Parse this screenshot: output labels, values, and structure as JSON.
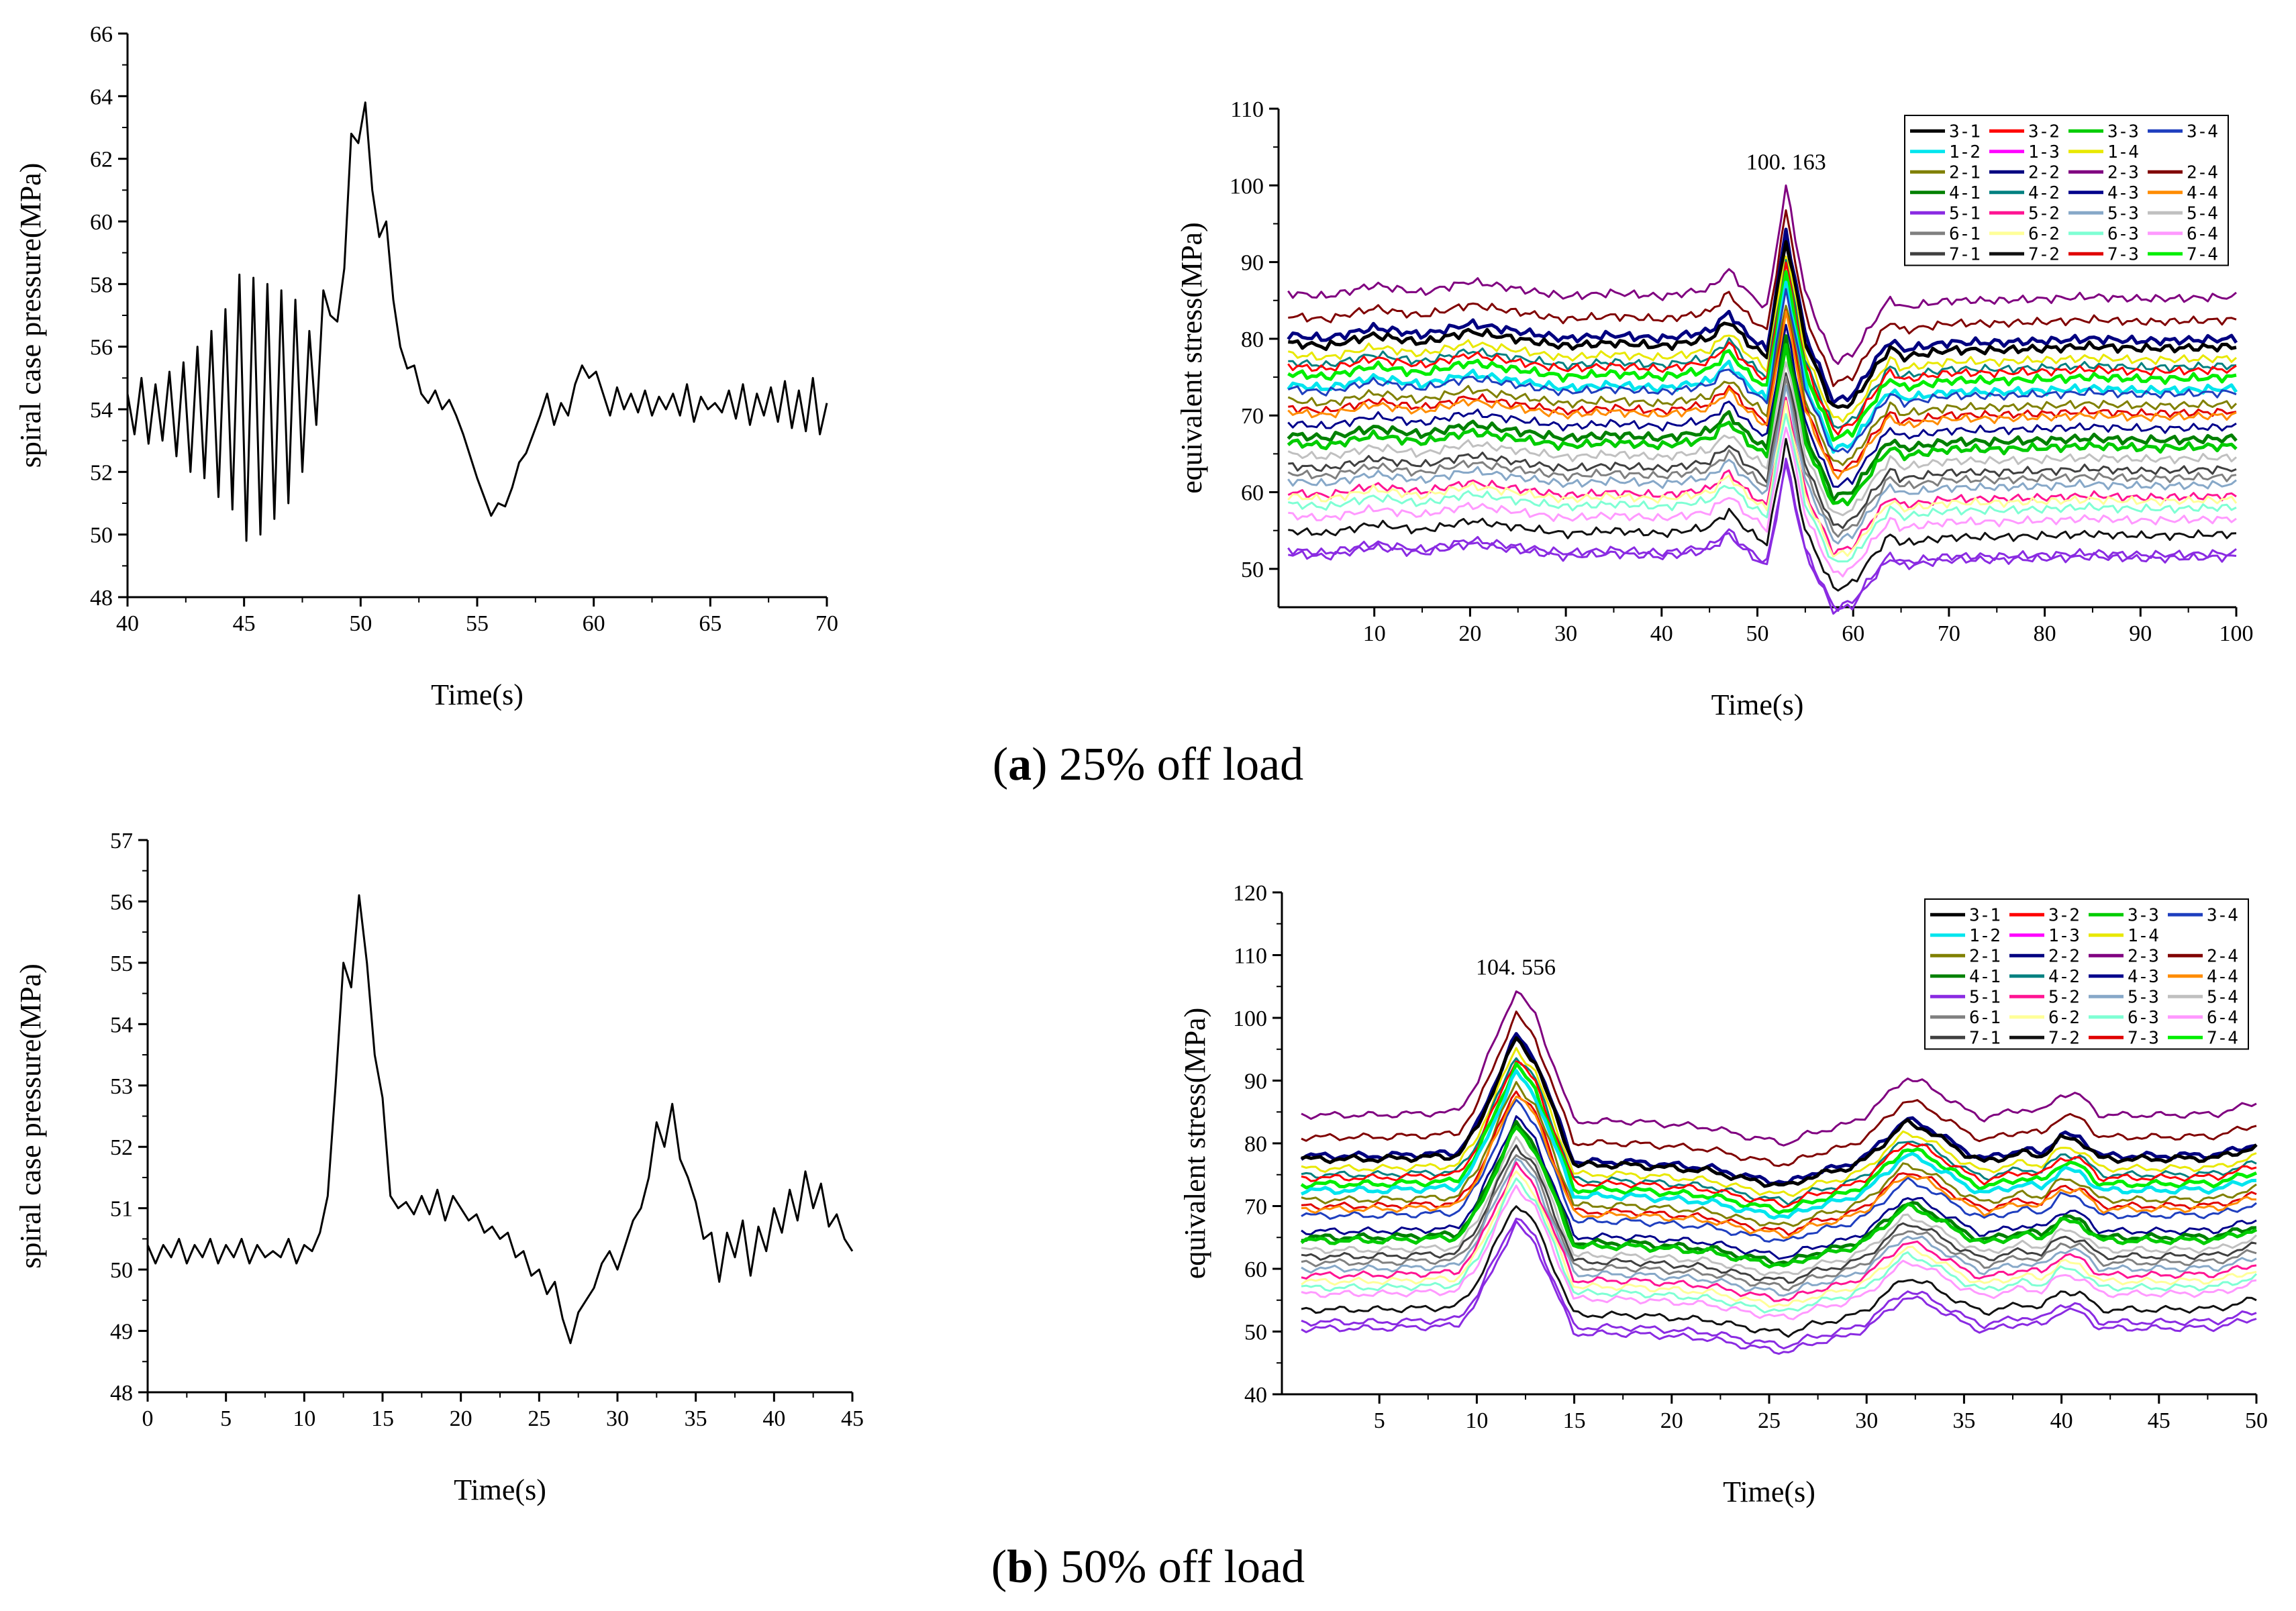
{
  "captions": {
    "a": {
      "letter": "a",
      "text": "25% off load"
    },
    "b": {
      "letter": "b",
      "text": "50% off load"
    }
  },
  "colors": {
    "3-1": "#000000",
    "3-2": "#ff0000",
    "3-3": "#00cc00",
    "3-4": "#1f3fbf",
    "1-2": "#00e5ee",
    "1-3": "#ff00ff",
    "1-4": "#e8e800",
    "2-1": "#808000",
    "2-2": "#000080",
    "2-3": "#800080",
    "2-4": "#800000",
    "4-1": "#008000",
    "4-2": "#008080",
    "4-3": "#00008b",
    "4-4": "#ff8c00",
    "5-1": "#8a2be2",
    "5-2": "#ff1493",
    "5-3": "#87a8c8",
    "5-4": "#c0c0c0",
    "6-1": "#808080",
    "6-2": "#ffff99",
    "6-3": "#7fffd4",
    "6-4": "#ff99ff",
    "7-1": "#404040",
    "7-2": "#111111",
    "7-3": "#e00000",
    "7-4": "#00ee00"
  },
  "chart_data": [
    {
      "id": "a-pressure",
      "type": "line",
      "xlabel": "Time(s)",
      "ylabel": "spiral case pressure(MPa)",
      "xlim": [
        40,
        70
      ],
      "ylim": [
        48,
        66
      ],
      "xticks": [
        40,
        45,
        50,
        55,
        60,
        65,
        70
      ],
      "yticks": [
        48,
        50,
        52,
        54,
        56,
        58,
        60,
        62,
        64,
        66
      ],
      "grid": false,
      "series": [
        {
          "x": [
            40,
            40.3,
            40.6,
            40.9,
            41.2,
            41.5,
            41.8,
            42.1,
            42.4,
            42.7,
            43.0,
            43.3,
            43.6,
            43.9,
            44.2,
            44.5,
            44.8,
            45.1,
            45.4,
            45.7,
            46.0,
            46.3,
            46.6,
            46.9,
            47.2,
            47.5,
            47.8,
            48.1,
            48.4,
            48.7,
            49.0,
            49.3,
            49.6,
            49.9,
            50.2,
            50.5,
            50.8,
            51.1,
            51.4,
            51.7,
            52.0,
            52.3,
            52.6,
            52.9,
            53.2,
            53.5,
            53.8,
            54.1,
            54.4,
            54.7,
            55.0,
            55.3,
            55.6,
            55.9,
            56.2,
            56.5,
            56.8,
            57.1,
            57.4,
            57.7,
            58.0,
            58.3,
            58.6,
            58.9,
            59.2,
            59.5,
            59.8,
            60.1,
            60.4,
            60.7,
            61.0,
            61.3,
            61.6,
            61.9,
            62.2,
            62.5,
            62.8,
            63.1,
            63.4,
            63.7,
            64.0,
            64.3,
            64.6,
            64.9,
            65.2,
            65.5,
            65.8,
            66.1,
            66.4,
            66.7,
            67.0,
            67.3,
            67.6,
            67.9,
            68.2,
            68.5,
            68.8,
            69.1,
            69.4,
            69.7,
            70.0
          ],
          "y": [
            54.5,
            53.2,
            55.0,
            52.9,
            54.8,
            53.0,
            55.2,
            52.5,
            55.5,
            52.0,
            56.0,
            51.8,
            56.5,
            51.2,
            57.2,
            50.8,
            58.3,
            49.8,
            58.2,
            50.0,
            58.0,
            50.5,
            57.8,
            51.0,
            57.5,
            52.0,
            56.5,
            53.5,
            57.8,
            57.0,
            56.8,
            58.5,
            62.8,
            62.5,
            63.8,
            61.0,
            59.5,
            60.0,
            57.5,
            56.0,
            55.3,
            55.4,
            54.5,
            54.2,
            54.6,
            54.0,
            54.3,
            53.8,
            53.2,
            52.5,
            51.8,
            51.2,
            50.6,
            51.0,
            50.9,
            51.5,
            52.3,
            52.6,
            53.2,
            53.8,
            54.5,
            53.5,
            54.2,
            53.8,
            54.8,
            55.4,
            55.0,
            55.2,
            54.5,
            53.8,
            54.7,
            54.0,
            54.5,
            53.9,
            54.6,
            53.8,
            54.4,
            54.0,
            54.5,
            53.8,
            54.8,
            53.6,
            54.4,
            54.0,
            54.2,
            53.9,
            54.6,
            53.7,
            54.8,
            53.5,
            54.5,
            53.8,
            54.7,
            53.6,
            54.9,
            53.4,
            54.6,
            53.3,
            55.0,
            53.2,
            54.2
          ]
        }
      ]
    },
    {
      "id": "a-stress",
      "type": "line",
      "xlabel": "Time(s)",
      "ylabel": "equivalent stress(MPa)",
      "xlim": [
        0,
        100
      ],
      "ylim": [
        45,
        110
      ],
      "xticks": [
        10,
        20,
        30,
        40,
        50,
        60,
        70,
        80,
        90,
        100
      ],
      "yticks": [
        50,
        60,
        70,
        80,
        90,
        100,
        110
      ],
      "grid": false,
      "legend": "top-right",
      "legend_cols": [
        "3-1",
        "3-2",
        "3-3",
        "3-4",
        "1-2",
        "1-3",
        "1-4",
        "2-1",
        "2-2",
        "2-3",
        "2-4",
        "4-1",
        "4-2",
        "4-3",
        "4-4",
        "5-1",
        "5-2",
        "5-3",
        "5-4",
        "6-1",
        "6-2",
        "6-3",
        "6-4",
        "7-1",
        "7-2",
        "7-3",
        "7-4"
      ],
      "peak_label": "100. 163",
      "peak_x": 53,
      "peak_y": 100.163,
      "series_bases": {
        "2-3": 86,
        "2-4": 83,
        "2-2": 80.5,
        "3-1": 79.5,
        "1-4": 78,
        "4-2": 77,
        "3-2": 76.5,
        "7-4": 75.5,
        "1-2": 74,
        "3-4": 73.5,
        "2-1": 72,
        "7-3": 71,
        "4-4": 70.5,
        "4-3": 69,
        "4-1": 67.5,
        "3-3": 66.5,
        "5-4": 65,
        "7-1": 63.5,
        "6-1": 62.5,
        "5-3": 61.5,
        "5-2": 60,
        "6-2": 59.5,
        "6-3": 58.5,
        "6-4": 57,
        "7-2": 55,
        "5-1": 52.5,
        "4-x": 52
      },
      "profile_x": [
        1,
        5,
        10,
        15,
        20,
        25,
        30,
        35,
        40,
        45,
        47,
        49,
        51,
        53,
        55,
        57,
        58,
        60,
        62,
        64,
        65,
        70,
        75,
        80,
        85,
        90,
        95,
        100
      ],
      "profile_d": [
        0,
        -0.5,
        1,
        0,
        1.5,
        0.5,
        -0.5,
        0,
        -0.5,
        0.5,
        3,
        0,
        -2,
        14,
        0,
        -6,
        -9,
        -8,
        -4,
        -0.5,
        -2,
        -1,
        -1,
        -0.8,
        -0.5,
        -0.8,
        -0.7,
        -0.5
      ],
      "peak_amp": 14
    },
    {
      "id": "b-pressure",
      "type": "line",
      "xlabel": "Time(s)",
      "ylabel": "spiral case pressure(MPa)",
      "xlim": [
        0,
        45
      ],
      "ylim": [
        48,
        57
      ],
      "xticks": [
        0,
        5,
        10,
        15,
        20,
        25,
        30,
        35,
        40,
        45
      ],
      "yticks": [
        48,
        49,
        50,
        51,
        52,
        53,
        54,
        55,
        56,
        57
      ],
      "grid": false,
      "series": [
        {
          "x": [
            0,
            0.5,
            1,
            1.5,
            2,
            2.5,
            3,
            3.5,
            4,
            4.5,
            5,
            5.5,
            6,
            6.5,
            7,
            7.5,
            8,
            8.5,
            9,
            9.5,
            10,
            10.5,
            11,
            11.5,
            12,
            12.5,
            13,
            13.5,
            14,
            14.5,
            15,
            15.5,
            16,
            16.5,
            17,
            17.5,
            18,
            18.5,
            19,
            19.5,
            20,
            20.5,
            21,
            21.5,
            22,
            22.5,
            23,
            23.5,
            24,
            24.5,
            25,
            25.5,
            26,
            26.5,
            27,
            27.5,
            28,
            28.5,
            29,
            29.5,
            30,
            30.5,
            31,
            31.5,
            32,
            32.5,
            33,
            33.5,
            34,
            34.5,
            35,
            35.5,
            36,
            36.5,
            37,
            37.5,
            38,
            38.5,
            39,
            39.5,
            40,
            40.5,
            41,
            41.5,
            42,
            42.5,
            43,
            43.5,
            44,
            44.5,
            45
          ],
          "y": [
            50.4,
            50.1,
            50.4,
            50.2,
            50.5,
            50.1,
            50.4,
            50.2,
            50.5,
            50.1,
            50.4,
            50.2,
            50.5,
            50.1,
            50.4,
            50.2,
            50.3,
            50.2,
            50.5,
            50.1,
            50.4,
            50.3,
            50.6,
            51.2,
            53.0,
            55.0,
            54.6,
            56.1,
            55.0,
            53.5,
            52.8,
            51.2,
            51.0,
            51.1,
            50.9,
            51.2,
            50.9,
            51.3,
            50.8,
            51.2,
            51.0,
            50.8,
            50.9,
            50.6,
            50.7,
            50.5,
            50.6,
            50.2,
            50.3,
            49.9,
            50.0,
            49.6,
            49.8,
            49.2,
            48.8,
            49.3,
            49.5,
            49.7,
            50.1,
            50.3,
            50.0,
            50.4,
            50.8,
            51.0,
            51.5,
            52.4,
            52.0,
            52.7,
            51.8,
            51.5,
            51.1,
            50.5,
            50.6,
            49.8,
            50.6,
            50.2,
            50.8,
            49.9,
            50.7,
            50.3,
            51.0,
            50.6,
            51.3,
            50.8,
            51.6,
            51.0,
            51.4,
            50.7,
            50.9,
            50.5,
            50.3
          ]
        }
      ]
    },
    {
      "id": "b-stress",
      "type": "line",
      "xlabel": "Time(s)",
      "ylabel": "equivalent stress(MPa)",
      "xlim": [
        0,
        50
      ],
      "ylim": [
        40,
        120
      ],
      "xticks": [
        5,
        10,
        15,
        20,
        25,
        30,
        35,
        40,
        45,
        50
      ],
      "yticks": [
        40,
        50,
        60,
        70,
        80,
        90,
        100,
        110,
        120
      ],
      "grid": false,
      "legend": "top-right",
      "legend_cols": [
        "3-1",
        "3-2",
        "3-3",
        "3-4",
        "1-2",
        "1-3",
        "1-4",
        "2-1",
        "2-2",
        "2-3",
        "2-4",
        "4-1",
        "4-2",
        "4-3",
        "4-4",
        "5-1",
        "5-2",
        "5-3",
        "5-4",
        "6-1",
        "6-2",
        "6-3",
        "6-4",
        "7-1",
        "7-2",
        "7-3",
        "7-4"
      ],
      "peak_label": "104. 556",
      "peak_x": 12,
      "peak_y": 104.556,
      "series_bases": {
        "2-3": 84.5,
        "2-4": 81,
        "2-2": 78,
        "3-1": 77.5,
        "1-4": 76,
        "4-2": 75,
        "3-2": 74.5,
        "7-4": 73.5,
        "1-2": 72.5,
        "3-4": 68.5,
        "2-1": 71,
        "7-3": 70,
        "4-4": 69.5,
        "4-3": 66,
        "4-1": 65,
        "3-3": 64.5,
        "5-4": 63,
        "7-1": 62,
        "6-1": 61,
        "5-3": 60,
        "5-2": 59,
        "6-2": 58,
        "6-3": 57,
        "6-4": 56,
        "7-2": 53.5,
        "5-1": 51.5,
        "4-x": 50.5
      },
      "profile_x": [
        1,
        5,
        9,
        10,
        12,
        13,
        15,
        18,
        20,
        22,
        24,
        26,
        27,
        29,
        30,
        32,
        33,
        35,
        36,
        38,
        39,
        40,
        41,
        42,
        45,
        48,
        50
      ],
      "profile_d": [
        0,
        0,
        0.5,
        5,
        20,
        16,
        -1,
        -1,
        -1.5,
        -2,
        -3.5,
        -4.5,
        -3,
        -1.5,
        0,
        6,
        5,
        1,
        -0.5,
        1,
        0.5,
        3.5,
        3,
        0,
        0,
        0.2,
        2
      ],
      "peak_amp": 20
    }
  ]
}
